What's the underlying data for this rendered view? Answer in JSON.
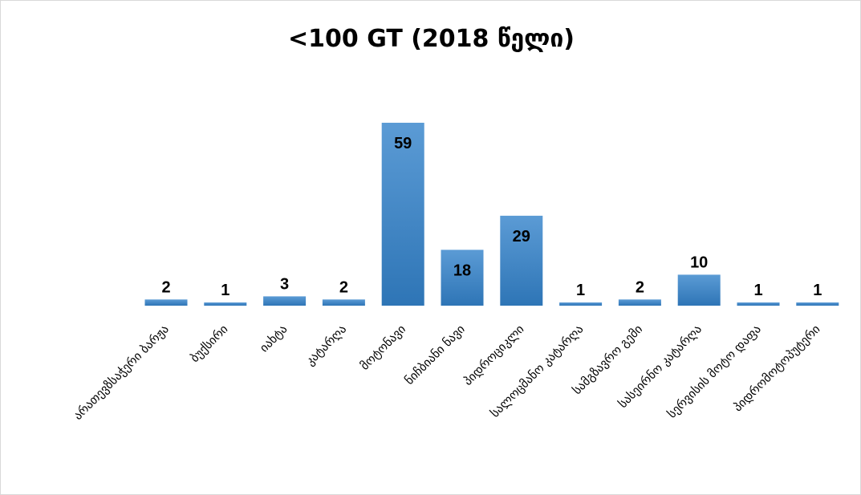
{
  "chart_data": {
    "type": "bar",
    "title": "<100 GT (2018 წელი)",
    "categories": [
      "არათევზსაჭერი ბარჟა",
      "ბუქსირი",
      "იახტა",
      "კატარღა",
      "მოტონავი",
      "ნიჩბიანი ნავი",
      "პიდროციკლი",
      "სალოცმანო კატარღა",
      "სამგზავრო გემი",
      "სასეირნო კატარღა",
      "სერვისის მოტო დაფა",
      "პიდრომოტოპუტერი"
    ],
    "values": [
      2,
      1,
      3,
      2,
      59,
      18,
      29,
      1,
      2,
      10,
      1,
      1
    ],
    "ylim": [
      0,
      59
    ],
    "grid": false,
    "legend": "none",
    "data_labels": true,
    "bar_color": "#5b9bd5",
    "bar_color_dark": "#2e75b6"
  }
}
